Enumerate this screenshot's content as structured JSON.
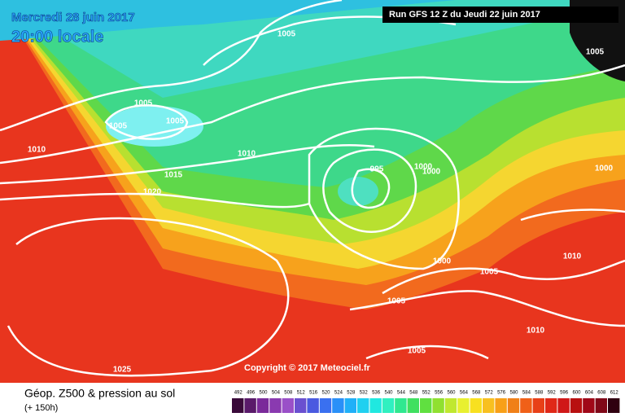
{
  "header": {
    "date": "Mercredi 28 juin 2017",
    "time": "20:00 locale",
    "run": "Run GFS 12 Z du Jeudi 22 juin 2017"
  },
  "isobar_labels": [
    "1005",
    "1005",
    "1005",
    "1005",
    "1005",
    "1010",
    "1010",
    "1015",
    "1020",
    "995",
    "1000",
    "1000",
    "1000",
    "1000",
    "1005",
    "1005",
    "1005",
    "1010",
    "1010",
    "1025"
  ],
  "copyright": "Copyright © 2017 Meteociel.fr",
  "footer": {
    "title": "Géop. Z500 & pression au sol",
    "subtitle": "(+ 150h)"
  },
  "legend": {
    "levels": [
      492,
      496,
      500,
      504,
      508,
      512,
      516,
      520,
      524,
      528,
      532,
      536,
      540,
      544,
      548,
      552,
      556,
      560,
      564,
      568,
      572,
      576,
      580,
      584,
      588,
      592,
      596,
      600,
      604,
      608,
      612
    ],
    "colors": [
      "#3a0a3a",
      "#5a1a6a",
      "#7a2a9a",
      "#8a3ab0",
      "#9a50c8",
      "#6a50d0",
      "#4a5ae0",
      "#3a70f0",
      "#2a90f8",
      "#20b0f8",
      "#20d0f0",
      "#20e8e0",
      "#30f0c0",
      "#30e890",
      "#40e060",
      "#60e040",
      "#90e030",
      "#c0e830",
      "#e8f030",
      "#f8e020",
      "#f8c020",
      "#f8a018",
      "#f08018",
      "#f06018",
      "#e84018",
      "#e02818",
      "#d01818",
      "#b81010",
      "#a00818",
      "#800818",
      "#300010"
    ]
  }
}
